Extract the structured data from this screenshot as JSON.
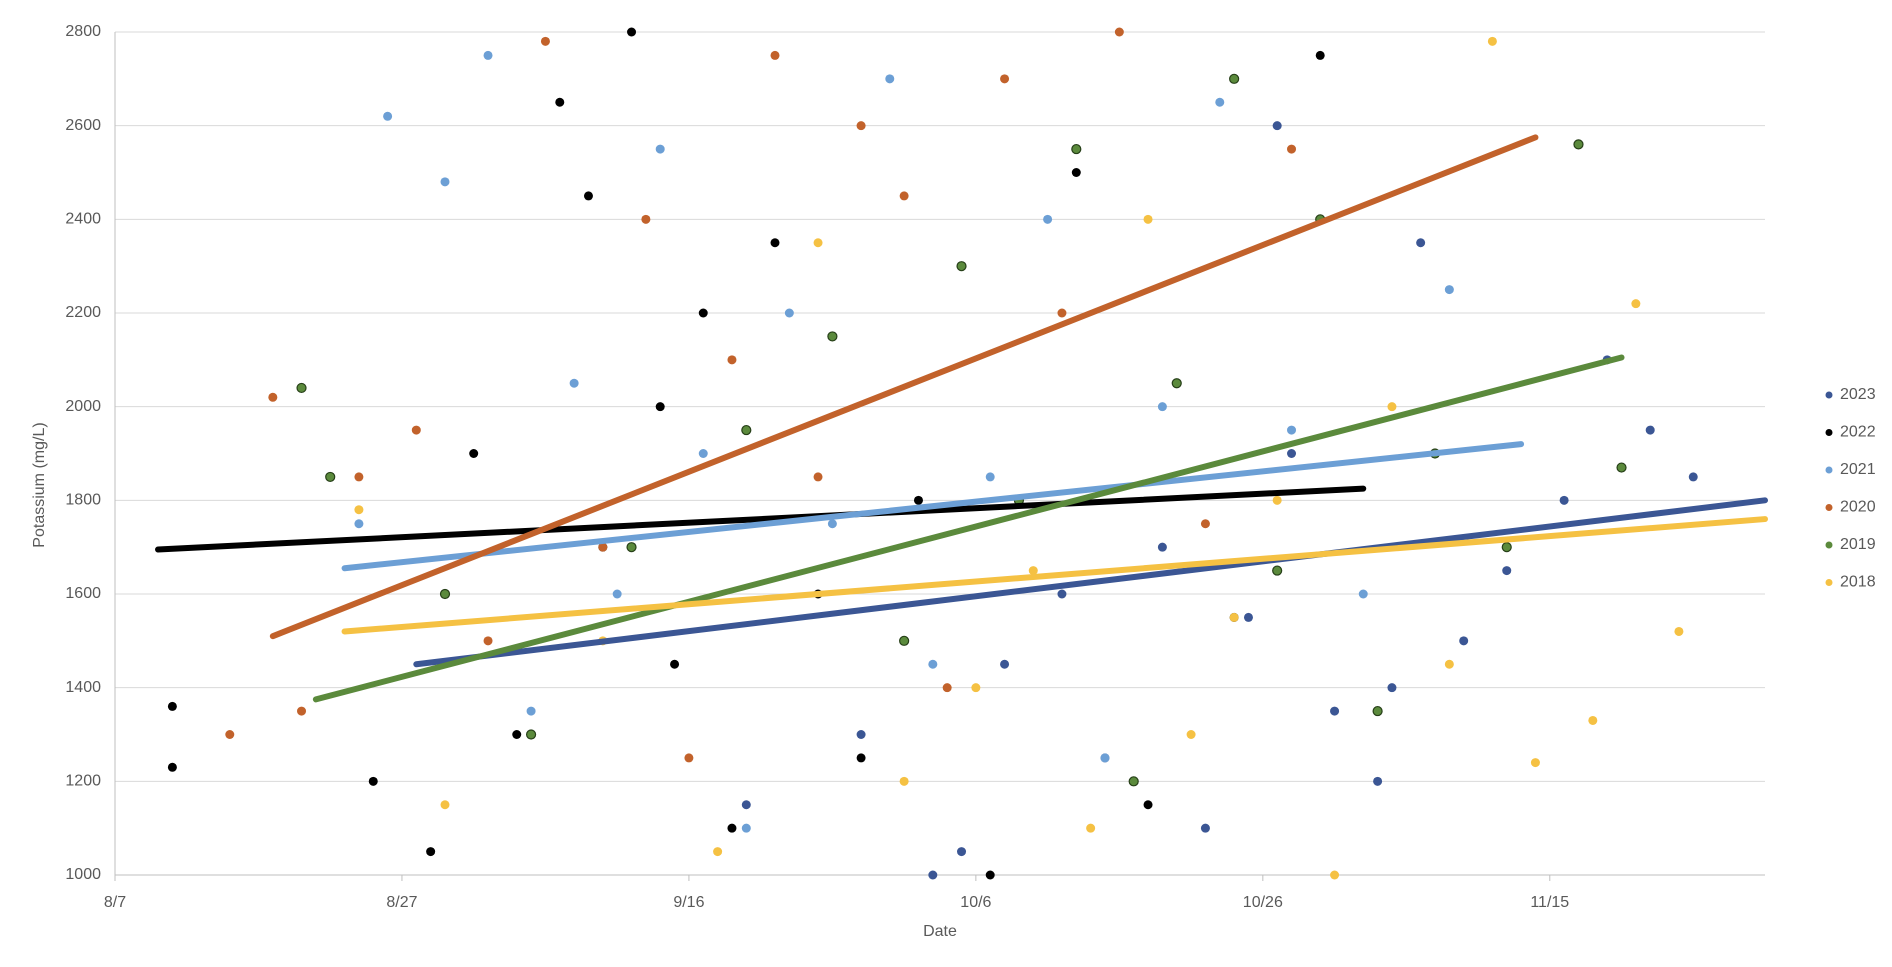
{
  "chart_data": {
    "type": "scatter",
    "xlabel": "Date",
    "ylabel": "Potassium (mg/L)",
    "xlim": [
      "8/7",
      "11/30"
    ],
    "xticks": [
      "8/7",
      "8/27",
      "9/16",
      "10/6",
      "10/26",
      "11/15"
    ],
    "ylim": [
      1000,
      2800
    ],
    "yticks": [
      1000,
      1200,
      1400,
      1600,
      1800,
      2000,
      2200,
      2400,
      2600,
      2800
    ],
    "grid": true,
    "legend": "right",
    "series": [
      {
        "name": "2023",
        "color": "#3b5694",
        "x": [
          "9/20",
          "9/28",
          "10/3",
          "10/8",
          "10/12",
          "10/15",
          "10/19",
          "10/22",
          "10/25",
          "10/28",
          "10/31",
          "11/3",
          "11/6",
          "11/9",
          "11/12",
          "11/16",
          "11/19",
          "11/22",
          "11/25",
          "10/5",
          "10/27",
          "11/4"
        ],
        "values": [
          1150,
          1300,
          1000,
          1450,
          1600,
          1250,
          1700,
          1100,
          1550,
          1900,
          1350,
          1200,
          2350,
          1500,
          1650,
          1800,
          2100,
          1950,
          1850,
          1050,
          2600,
          1400
        ],
        "trend": {
          "x": [
            "8/28",
            "11/30"
          ],
          "values": [
            1450,
            1800
          ]
        }
      },
      {
        "name": "2022",
        "color": "#000000",
        "x": [
          "8/11",
          "8/11",
          "8/25",
          "8/29",
          "9/1",
          "9/4",
          "9/7",
          "9/9",
          "9/10",
          "9/12",
          "9/14",
          "9/15",
          "9/17",
          "9/19",
          "9/22",
          "9/25",
          "9/28",
          "10/2",
          "10/7",
          "10/13",
          "10/18",
          "10/24",
          "10/30"
        ],
        "values": [
          1360,
          1230,
          1200,
          1050,
          1900,
          1300,
          2650,
          2450,
          1700,
          2800,
          2000,
          1450,
          2200,
          1100,
          2350,
          1600,
          1250,
          1800,
          1000,
          2500,
          1150,
          1550,
          2750
        ],
        "trend": {
          "x": [
            "8/10",
            "11/2"
          ],
          "values": [
            1695,
            1825
          ]
        }
      },
      {
        "name": "2021",
        "color": "#6c9fd5",
        "x": [
          "8/24",
          "8/26",
          "8/30",
          "9/2",
          "9/5",
          "9/8",
          "9/11",
          "9/14",
          "9/17",
          "9/20",
          "9/23",
          "9/26",
          "9/30",
          "10/3",
          "10/7",
          "10/11",
          "10/15",
          "10/19",
          "10/23",
          "10/28",
          "11/2",
          "11/8"
        ],
        "values": [
          1750,
          2620,
          2480,
          2750,
          1350,
          2050,
          1600,
          2550,
          1900,
          1100,
          2200,
          1750,
          2700,
          1450,
          1850,
          2400,
          1250,
          2000,
          2650,
          1950,
          1600,
          2250
        ],
        "trend": {
          "x": [
            "8/23",
            "11/13"
          ],
          "values": [
            1655,
            1920
          ]
        }
      },
      {
        "name": "2020",
        "color": "#c2622b",
        "x": [
          "8/15",
          "8/18",
          "8/20",
          "8/24",
          "8/28",
          "9/2",
          "9/6",
          "9/10",
          "9/13",
          "9/16",
          "9/19",
          "9/22",
          "9/25",
          "9/28",
          "10/1",
          "10/4",
          "10/8",
          "10/12",
          "10/16",
          "10/22",
          "10/28"
        ],
        "values": [
          1300,
          2020,
          1350,
          1850,
          1950,
          1500,
          2780,
          1700,
          2400,
          1250,
          2100,
          2750,
          1850,
          2600,
          2450,
          1400,
          2700,
          2200,
          2800,
          1750,
          2550
        ],
        "trend": {
          "x": [
            "8/18",
            "11/14"
          ],
          "values": [
            1510,
            2575
          ]
        }
      },
      {
        "name": "2019",
        "color": "#5b8a3c",
        "edgecolor": "#263f18",
        "x": [
          "8/20",
          "8/22",
          "8/30",
          "9/5",
          "9/12",
          "9/20",
          "9/26",
          "10/1",
          "10/5",
          "10/9",
          "10/13",
          "10/17",
          "10/20",
          "10/24",
          "10/27",
          "10/30",
          "11/3",
          "11/7",
          "11/12",
          "11/17",
          "11/20"
        ],
        "values": [
          2040,
          1850,
          1600,
          1300,
          1700,
          1950,
          2150,
          1500,
          2300,
          1800,
          2550,
          1200,
          2050,
          2700,
          1650,
          2400,
          1350,
          1900,
          1700,
          2560,
          1870
        ],
        "trend": {
          "x": [
            "8/21",
            "11/20"
          ],
          "values": [
            1375,
            2105
          ]
        }
      },
      {
        "name": "2018",
        "color": "#f5c143",
        "x": [
          "8/24",
          "8/30",
          "9/10",
          "9/18",
          "9/25",
          "10/1",
          "10/6",
          "10/10",
          "10/14",
          "10/18",
          "10/21",
          "10/24",
          "10/27",
          "10/31",
          "11/4",
          "11/8",
          "11/11",
          "11/14",
          "11/18",
          "11/21",
          "11/24"
        ],
        "values": [
          1780,
          1150,
          1500,
          1050,
          2350,
          1200,
          1400,
          1650,
          1100,
          2400,
          1300,
          1550,
          1800,
          1000,
          2000,
          1450,
          2780,
          1240,
          1330,
          2220,
          1520
        ],
        "trend": {
          "x": [
            "8/23",
            "11/30"
          ],
          "values": [
            1520,
            1760
          ]
        }
      }
    ]
  }
}
